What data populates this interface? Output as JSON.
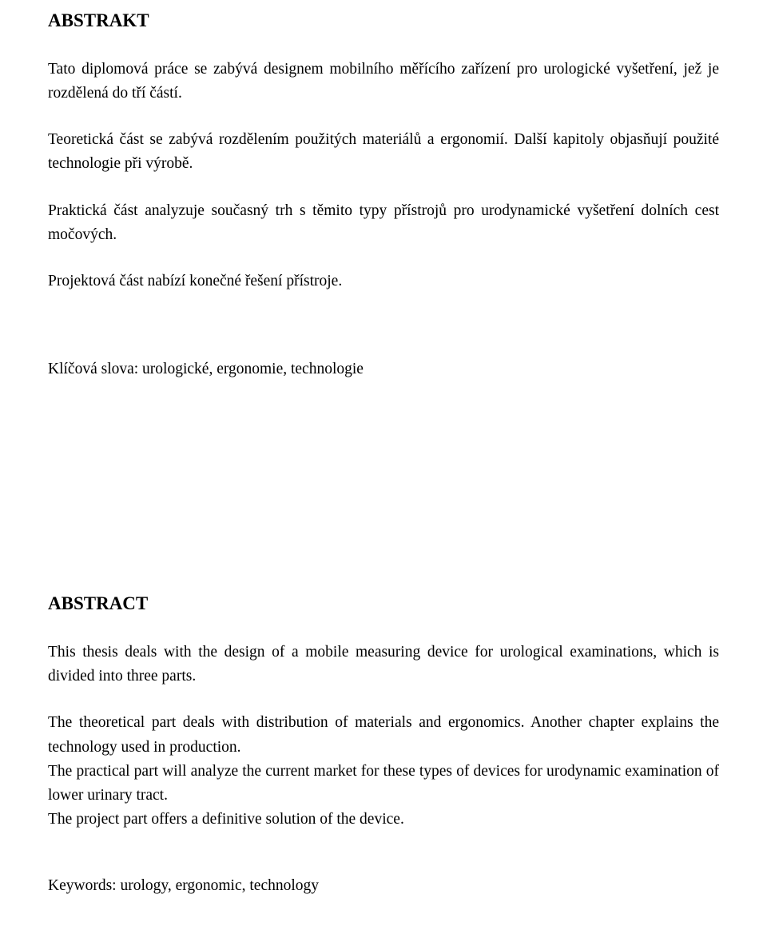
{
  "abstrakt": {
    "heading": "ABSTRAKT",
    "p1": "Tato diplomová práce se zabývá designem mobilního měřícího zařízení pro urologické vyšetření, jež je rozdělená do tří částí.",
    "p2": "Teoretická část se zabývá rozdělením použitých materiálů a ergonomií. Další kapitoly objasňují použité technologie při výrobě.",
    "p3": "Praktická část analyzuje současný trh s těmito typy přístrojů pro urodynamické vyšetření dolních cest močových.",
    "p4": "Projektová část nabízí konečné řešení přístroje.",
    "keywords": "Klíčová slova: urologické, ergonomie, technologie"
  },
  "abstract": {
    "heading": "ABSTRACT",
    "p1": "This thesis deals with the design of a mobile measuring device for urological examinations, which is divided into three parts.",
    "p2": "The theoretical part deals with distribution of materials and ergonomics. Another chapter explains the technology used in production.",
    "p3": "The practical part will analyze the current market for these types of devices for urodynamic examination of lower urinary tract.",
    "p4": "The project part offers a definitive solution of the device.",
    "keywords": "Keywords: urology, ergonomic, technology"
  }
}
